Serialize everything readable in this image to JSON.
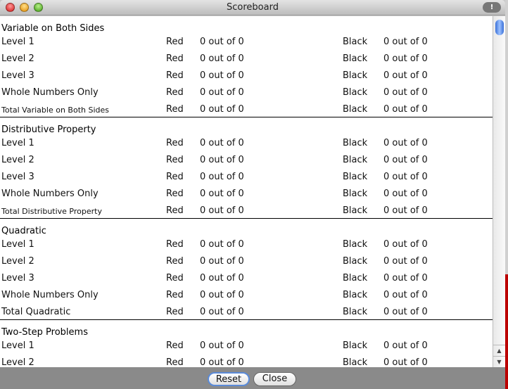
{
  "window": {
    "title": "Scoreboard"
  },
  "sections": [
    {
      "title": "Variable on Both Sides",
      "rows": [
        {
          "label": "Level 1",
          "red_label": "Red",
          "red": "0 out of 0",
          "black_label": "Black",
          "black": "0 out of 0"
        },
        {
          "label": "Level 2",
          "red_label": "Red",
          "red": "0 out of 0",
          "black_label": "Black",
          "black": "0 out of 0"
        },
        {
          "label": "Level 3",
          "red_label": "Red",
          "red": "0 out of 0",
          "black_label": "Black",
          "black": "0 out of 0"
        },
        {
          "label": "Whole Numbers Only",
          "red_label": "Red",
          "red": "0 out of 0",
          "black_label": "Black",
          "black": "0 out of 0"
        },
        {
          "label": "Total Variable on Both Sides",
          "red_label": "Red",
          "red": "0 out of 0",
          "black_label": "Black",
          "black": "0 out of 0",
          "total": true
        }
      ]
    },
    {
      "title": "Distributive Property",
      "rows": [
        {
          "label": "Level 1",
          "red_label": "Red",
          "red": "0 out of 0",
          "black_label": "Black",
          "black": "0 out of 0"
        },
        {
          "label": "Level 2",
          "red_label": "Red",
          "red": "0 out of 0",
          "black_label": "Black",
          "black": "0 out of 0"
        },
        {
          "label": "Level 3",
          "red_label": "Red",
          "red": "0 out of 0",
          "black_label": "Black",
          "black": "0 out of 0"
        },
        {
          "label": "Whole Numbers Only",
          "red_label": "Red",
          "red": "0 out of 0",
          "black_label": "Black",
          "black": "0 out of 0"
        },
        {
          "label": "Total Distributive Property",
          "red_label": "Red",
          "red": "0 out of 0",
          "black_label": "Black",
          "black": "0 out of 0",
          "total": true
        }
      ]
    },
    {
      "title": "Quadratic",
      "rows": [
        {
          "label": "Level 1",
          "red_label": "Red",
          "red": "0 out of 0",
          "black_label": "Black",
          "black": "0 out of 0"
        },
        {
          "label": "Level 2",
          "red_label": "Red",
          "red": "0 out of 0",
          "black_label": "Black",
          "black": "0 out of 0"
        },
        {
          "label": "Level 3",
          "red_label": "Red",
          "red": "0 out of 0",
          "black_label": "Black",
          "black": "0 out of 0"
        },
        {
          "label": "Whole Numbers Only",
          "red_label": "Red",
          "red": "0 out of 0",
          "black_label": "Black",
          "black": "0 out of 0"
        },
        {
          "label": "Total Quadratic",
          "red_label": "Red",
          "red": "0 out of 0",
          "black_label": "Black",
          "black": "0 out of 0"
        }
      ]
    },
    {
      "title": "Two-Step Problems",
      "rows": [
        {
          "label": "Level 1",
          "red_label": "Red",
          "red": "0 out of 0",
          "black_label": "Black",
          "black": "0 out of 0"
        },
        {
          "label": "Level 2",
          "red_label": "Red",
          "red": "0 out of 0",
          "black_label": "Black",
          "black": "0 out of 0"
        }
      ]
    }
  ],
  "buttons": {
    "reset": "Reset",
    "close": "Close"
  },
  "icons": {
    "warning": "warning-icon",
    "scroll_up": "arrow-up-icon",
    "scroll_down": "arrow-down-icon"
  }
}
